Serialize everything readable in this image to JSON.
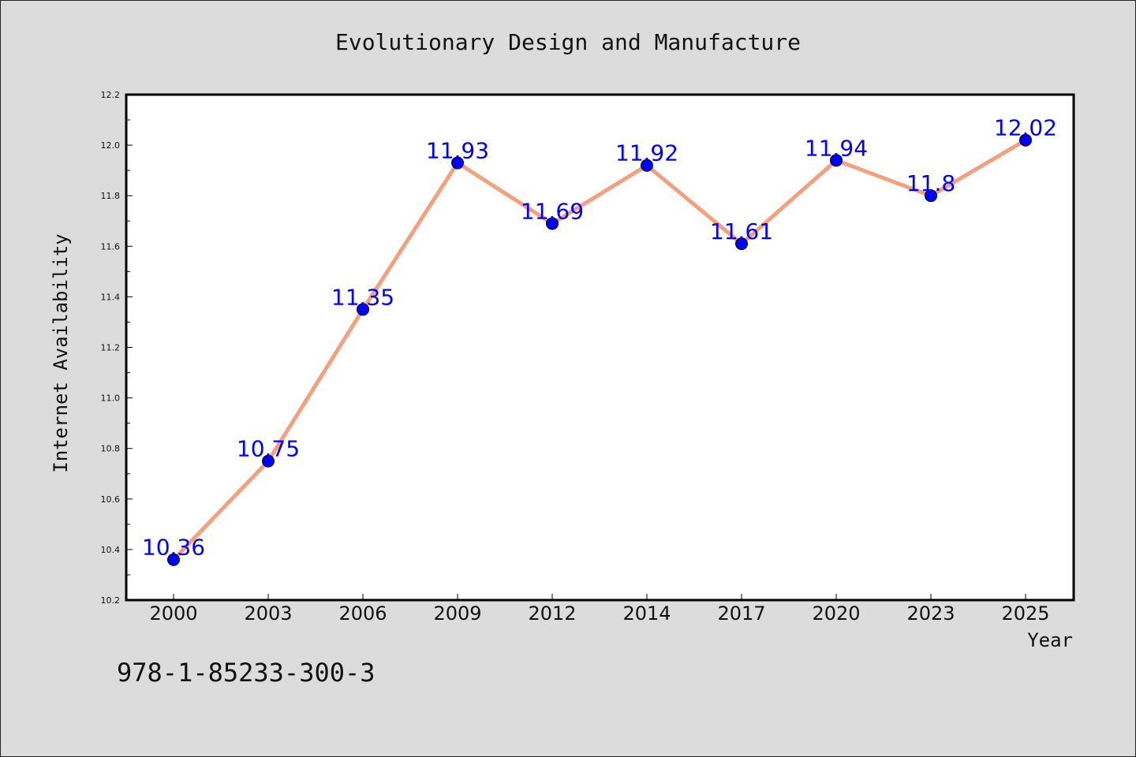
{
  "chart_data": {
    "type": "line",
    "title": "Evolutionary Design and Manufacture",
    "xlabel": "Year",
    "ylabel": "Internet Availability",
    "categories": [
      "2000",
      "2003",
      "2006",
      "2009",
      "2012",
      "2014",
      "2017",
      "2020",
      "2023",
      "2025"
    ],
    "series": [
      {
        "values": [
          10.36,
          10.75,
          11.35,
          11.93,
          11.69,
          11.92,
          11.61,
          11.94,
          11.8,
          12.02
        ],
        "data_labels": [
          "10.36",
          "10.75",
          "11.35",
          "11.93",
          "11.69",
          "11.92",
          "11.61",
          "11.94",
          "11.8",
          "12.02"
        ],
        "line_color": "#f4a07e",
        "marker_color": "#0000ff"
      }
    ],
    "ylim": [
      10.2,
      12.2
    ],
    "yticks": [
      "10.2",
      "10.4",
      "10.6",
      "10.8",
      "11.0",
      "11.2",
      "11.4",
      "11.6",
      "11.8",
      "12.0",
      "12.2"
    ],
    "grid": false,
    "label_color": "#0000ff"
  },
  "footnote": "978-1-85233-300-3"
}
